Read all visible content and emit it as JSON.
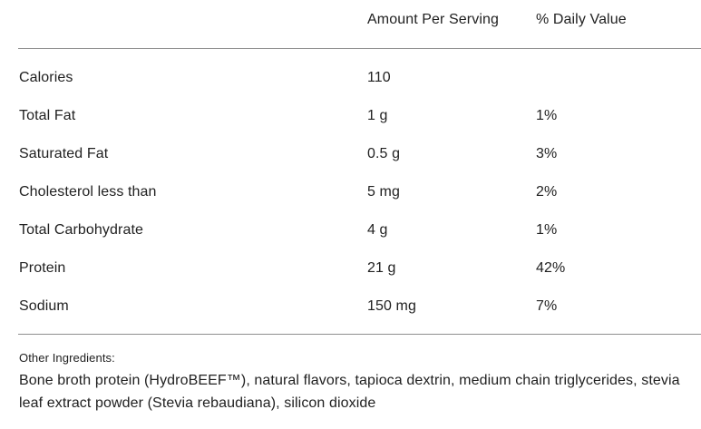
{
  "table": {
    "headers": {
      "amount": "Amount Per Serving",
      "daily_value": "% Daily Value"
    },
    "rows": [
      {
        "label": "Calories",
        "amount": "110",
        "daily_value": ""
      },
      {
        "label": "Total Fat",
        "amount": "1 g",
        "daily_value": "1%"
      },
      {
        "label": "Saturated Fat",
        "amount": "0.5 g",
        "daily_value": "3%"
      },
      {
        "label": "Cholesterol less than",
        "amount": "5 mg",
        "daily_value": "2%"
      },
      {
        "label": "Total Carbohydrate",
        "amount": "4 g",
        "daily_value": "1%"
      },
      {
        "label": "Protein",
        "amount": "21 g",
        "daily_value": "42%"
      },
      {
        "label": "Sodium",
        "amount": "150 mg",
        "daily_value": "7%"
      }
    ]
  },
  "footer": {
    "heading": "Other Ingredients:",
    "ingredients": "Bone broth protein (HydroBEEF™), natural flavors, tapioca dextrin, medium chain triglycerides, stevia leaf extract powder (Stevia rebaudiana), silicon dioxide"
  },
  "colors": {
    "text": "#212121",
    "divider": "#8f8f8f",
    "background": "#ffffff"
  }
}
